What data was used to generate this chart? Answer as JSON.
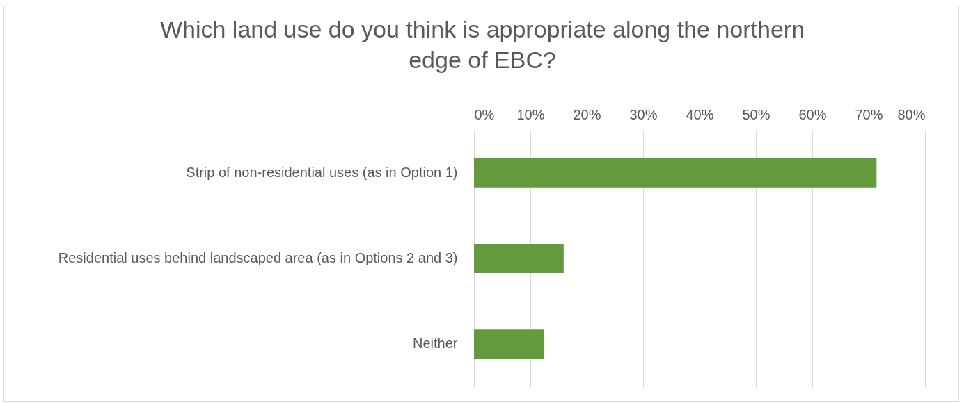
{
  "chart_data": {
    "type": "bar",
    "orientation": "horizontal",
    "title": "Which land use do you think is appropriate along the northern edge of EBC?",
    "categories": [
      "Strip of non-residential uses (as in Option 1)",
      "Residential uses behind landscaped area (as in Options 2 and 3)",
      "Neither"
    ],
    "values": [
      71.4,
      15.9,
      12.4
    ],
    "color": "#629a3c",
    "xlim": [
      0,
      80
    ],
    "xticks": [
      {
        "value": 0,
        "label": "0%"
      },
      {
        "value": 10,
        "label": "10%"
      },
      {
        "value": 20,
        "label": "20%"
      },
      {
        "value": 30,
        "label": "30%"
      },
      {
        "value": 40,
        "label": "40%"
      },
      {
        "value": 50,
        "label": "50%"
      },
      {
        "value": 60,
        "label": "60%"
      },
      {
        "value": 70,
        "label": "70%"
      },
      {
        "value": 80,
        "label": "80%"
      }
    ],
    "grid": true
  }
}
